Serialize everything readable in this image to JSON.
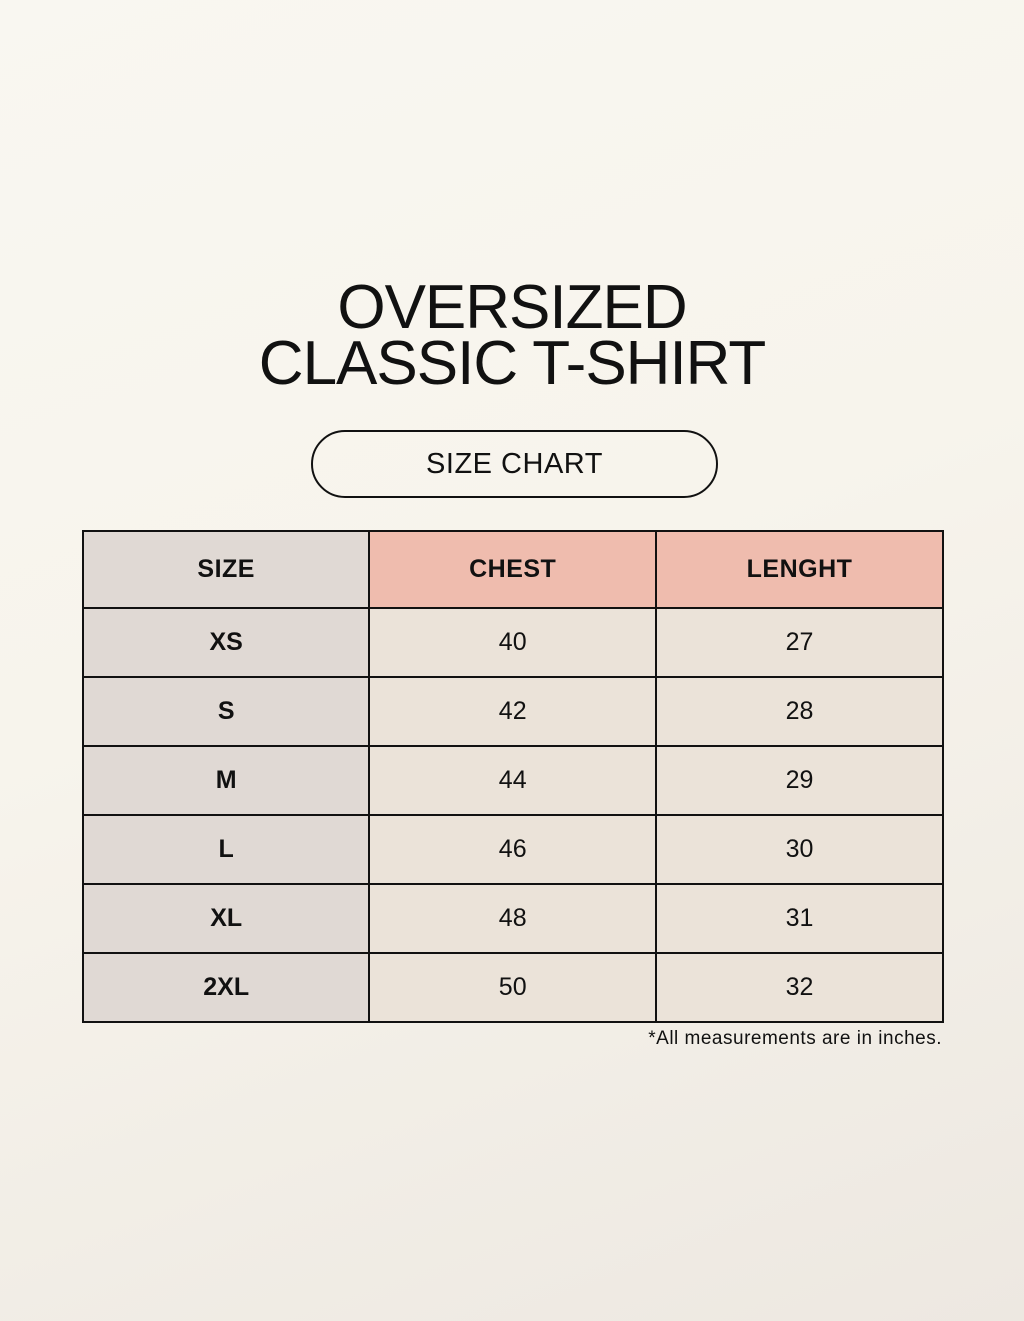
{
  "title": {
    "line1": "OVERSIZED",
    "line2": "CLASSIC T-SHIRT"
  },
  "badge": "SIZE CHART",
  "table": {
    "headers": [
      "SIZE",
      "CHEST",
      "LENGHT"
    ],
    "rows": [
      [
        "XS",
        "40",
        "27"
      ],
      [
        "S",
        "42",
        "28"
      ],
      [
        "M",
        "44",
        "29"
      ],
      [
        "L",
        "46",
        "30"
      ],
      [
        "XL",
        "48",
        "31"
      ],
      [
        "2XL",
        "50",
        "32"
      ]
    ]
  },
  "note": "*All measurements are in inches.",
  "colors": {
    "size_column": "#e0d9d4",
    "header_accent": "#efbcae",
    "cell": "#ebe3d9"
  }
}
